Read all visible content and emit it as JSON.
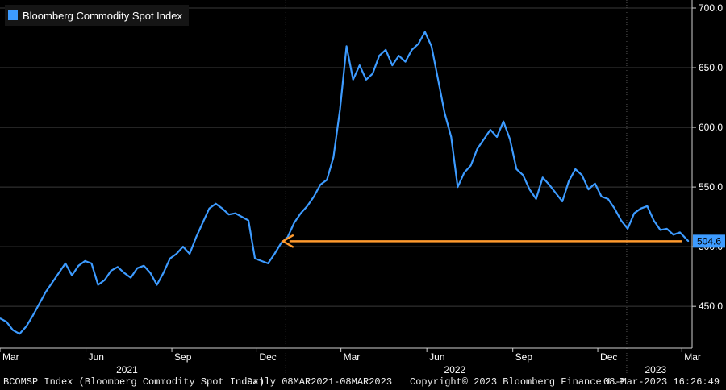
{
  "chart_data": {
    "type": "line",
    "legend": "Bloomberg Commodity Spot Index",
    "series": [
      {
        "name": "Bloomberg Commodity Spot Index",
        "color": "#3d9bff",
        "points": [
          [
            "2021-03-01",
            440
          ],
          [
            "2021-03-08",
            437
          ],
          [
            "2021-03-15",
            430
          ],
          [
            "2021-03-22",
            427
          ],
          [
            "2021-03-29",
            433
          ],
          [
            "2021-04-05",
            442
          ],
          [
            "2021-04-12",
            452
          ],
          [
            "2021-04-19",
            462
          ],
          [
            "2021-04-26",
            470
          ],
          [
            "2021-05-03",
            478
          ],
          [
            "2021-05-10",
            486
          ],
          [
            "2021-05-17",
            476
          ],
          [
            "2021-05-24",
            484
          ],
          [
            "2021-05-31",
            488
          ],
          [
            "2021-06-07",
            486
          ],
          [
            "2021-06-14",
            468
          ],
          [
            "2021-06-21",
            472
          ],
          [
            "2021-06-28",
            480
          ],
          [
            "2021-07-05",
            483
          ],
          [
            "2021-07-12",
            478
          ],
          [
            "2021-07-19",
            474
          ],
          [
            "2021-07-26",
            482
          ],
          [
            "2021-08-02",
            484
          ],
          [
            "2021-08-09",
            478
          ],
          [
            "2021-08-16",
            468
          ],
          [
            "2021-08-23",
            478
          ],
          [
            "2021-08-30",
            490
          ],
          [
            "2021-09-06",
            494
          ],
          [
            "2021-09-13",
            500
          ],
          [
            "2021-09-20",
            494
          ],
          [
            "2021-09-27",
            508
          ],
          [
            "2021-10-04",
            520
          ],
          [
            "2021-10-11",
            532
          ],
          [
            "2021-10-18",
            536
          ],
          [
            "2021-10-25",
            532
          ],
          [
            "2021-11-01",
            527
          ],
          [
            "2021-11-08",
            528
          ],
          [
            "2021-11-15",
            525
          ],
          [
            "2021-11-22",
            522
          ],
          [
            "2021-11-29",
            490
          ],
          [
            "2021-12-06",
            488
          ],
          [
            "2021-12-13",
            486
          ],
          [
            "2021-12-20",
            494
          ],
          [
            "2021-12-27",
            503
          ],
          [
            "2022-01-03",
            508
          ],
          [
            "2022-01-10",
            520
          ],
          [
            "2022-01-17",
            528
          ],
          [
            "2022-01-24",
            534
          ],
          [
            "2022-01-31",
            542
          ],
          [
            "2022-02-07",
            552
          ],
          [
            "2022-02-14",
            556
          ],
          [
            "2022-02-21",
            575
          ],
          [
            "2022-02-28",
            615
          ],
          [
            "2022-03-07",
            668
          ],
          [
            "2022-03-14",
            640
          ],
          [
            "2022-03-21",
            652
          ],
          [
            "2022-03-28",
            640
          ],
          [
            "2022-04-04",
            645
          ],
          [
            "2022-04-11",
            660
          ],
          [
            "2022-04-18",
            665
          ],
          [
            "2022-04-25",
            652
          ],
          [
            "2022-05-02",
            660
          ],
          [
            "2022-05-09",
            655
          ],
          [
            "2022-05-16",
            665
          ],
          [
            "2022-05-23",
            670
          ],
          [
            "2022-05-30",
            680
          ],
          [
            "2022-06-06",
            668
          ],
          [
            "2022-06-13",
            640
          ],
          [
            "2022-06-20",
            612
          ],
          [
            "2022-06-27",
            592
          ],
          [
            "2022-07-04",
            550
          ],
          [
            "2022-07-11",
            562
          ],
          [
            "2022-07-18",
            568
          ],
          [
            "2022-07-25",
            582
          ],
          [
            "2022-08-01",
            590
          ],
          [
            "2022-08-08",
            598
          ],
          [
            "2022-08-15",
            592
          ],
          [
            "2022-08-22",
            605
          ],
          [
            "2022-08-29",
            590
          ],
          [
            "2022-09-05",
            565
          ],
          [
            "2022-09-12",
            560
          ],
          [
            "2022-09-19",
            548
          ],
          [
            "2022-09-26",
            540
          ],
          [
            "2022-10-03",
            558
          ],
          [
            "2022-10-10",
            552
          ],
          [
            "2022-10-17",
            545
          ],
          [
            "2022-10-24",
            538
          ],
          [
            "2022-10-31",
            555
          ],
          [
            "2022-11-07",
            565
          ],
          [
            "2022-11-14",
            560
          ],
          [
            "2022-11-21",
            548
          ],
          [
            "2022-11-28",
            553
          ],
          [
            "2022-12-05",
            542
          ],
          [
            "2022-12-12",
            540
          ],
          [
            "2022-12-19",
            532
          ],
          [
            "2022-12-26",
            522
          ],
          [
            "2023-01-02",
            515
          ],
          [
            "2023-01-09",
            528
          ],
          [
            "2023-01-16",
            532
          ],
          [
            "2023-01-23",
            534
          ],
          [
            "2023-01-30",
            522
          ],
          [
            "2023-02-06",
            514
          ],
          [
            "2023-02-13",
            515
          ],
          [
            "2023-02-20",
            510
          ],
          [
            "2023-02-27",
            512
          ],
          [
            "2023-03-08",
            504.6
          ]
        ]
      }
    ],
    "y_ticks": [
      450.0,
      500.0,
      550.0,
      600.0,
      650.0,
      700.0
    ],
    "y_tick_labels": [
      "450.0",
      "500.0",
      "550.0",
      "600.0",
      "650.0",
      "700.0"
    ],
    "ylim": [
      415,
      700
    ],
    "xlim": [
      "2021-03-01",
      "2023-03-12"
    ],
    "month_ticks": [
      {
        "date": "2021-03-01",
        "label": "Mar"
      },
      {
        "date": "2021-06-01",
        "label": "Jun"
      },
      {
        "date": "2021-09-01",
        "label": "Sep"
      },
      {
        "date": "2021-12-01",
        "label": "Dec"
      },
      {
        "date": "2022-03-01",
        "label": "Mar"
      },
      {
        "date": "2022-06-01",
        "label": "Jun"
      },
      {
        "date": "2022-09-01",
        "label": "Sep"
      },
      {
        "date": "2022-12-01",
        "label": "Dec"
      },
      {
        "date": "2023-03-01",
        "label": "Mar"
      }
    ],
    "year_labels": [
      {
        "label": "2021",
        "center": "2021-07-15"
      },
      {
        "label": "2022",
        "center": "2022-07-01"
      },
      {
        "label": "2023",
        "center": "2023-02-01"
      }
    ],
    "year_boundaries": [
      "2022-01-01",
      "2023-01-01"
    ],
    "last_value": 504.6,
    "last_value_label": "504.6",
    "arrow": {
      "from_date": "2023-03-01",
      "to_date": "2021-12-29",
      "value": 504.6,
      "color": "#ff9a2e"
    },
    "grid": true,
    "legend_position": "top-left"
  },
  "footer": {
    "ticker": "BCOMSP Index (Bloomberg Commodity Spot Index)",
    "range": "Daily 08MAR2021-08MAR2023",
    "copyright": "Copyright© 2023 Bloomberg Finance L.P.",
    "timestamp": "08-Mar-2023 16:26:49"
  }
}
